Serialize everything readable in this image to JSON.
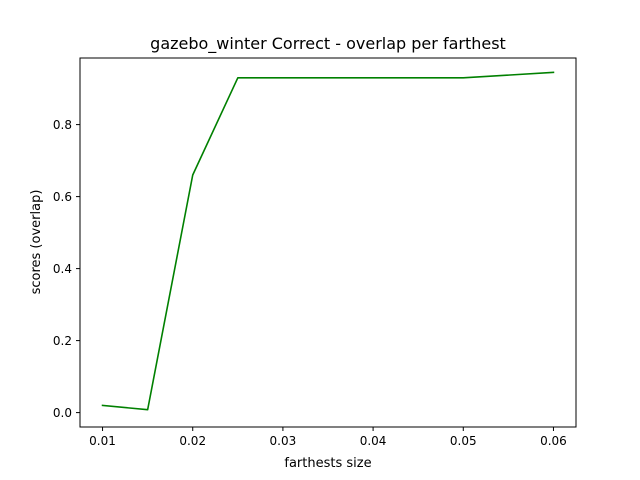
{
  "chart_data": {
    "type": "line",
    "title": "gazebo_winter Correct - overlap per farthest",
    "xlabel": "farthests size",
    "ylabel": "scores (overlap)",
    "xlim": [
      0.0075,
      0.0625
    ],
    "ylim": [
      -0.04,
      0.985
    ],
    "x_ticks": [
      "0.01",
      "0.02",
      "0.03",
      "0.04",
      "0.05",
      "0.06"
    ],
    "y_ticks": [
      "0.0",
      "0.2",
      "0.4",
      "0.6",
      "0.8"
    ],
    "grid": false,
    "series": [
      {
        "color": "#008000",
        "x": [
          0.01,
          0.015,
          0.02,
          0.025,
          0.05,
          0.06
        ],
        "y": [
          0.02,
          0.008,
          0.66,
          0.93,
          0.93,
          0.945
        ]
      }
    ]
  }
}
